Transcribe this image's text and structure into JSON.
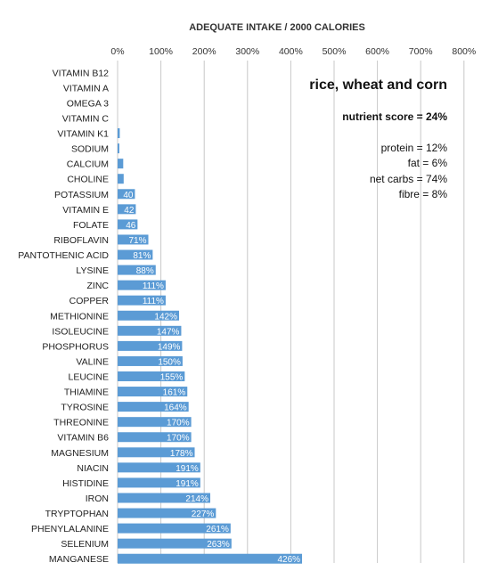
{
  "chart_data": {
    "type": "bar",
    "orientation": "horizontal",
    "title": "ADEQUATE INTAKE / 2000 CALORIES",
    "xlim": [
      0,
      800
    ],
    "xticks": [
      "0%",
      "100%",
      "200%",
      "300%",
      "400%",
      "500%",
      "600%",
      "700%",
      "800%"
    ],
    "grid": true,
    "bar_color": "#5b9bd5",
    "categories": [
      "VITAMIN B12",
      "VITAMIN A",
      "OMEGA 3",
      "VITAMIN C",
      "VITAMIN K1",
      "SODIUM",
      "CALCIUM",
      "CHOLINE",
      "POTASSIUM",
      "VITAMIN E",
      "FOLATE",
      "RIBOFLAVIN",
      "PANTOTHENIC ACID",
      "LYSINE",
      "ZINC",
      "COPPER",
      "METHIONINE",
      "ISOLEUCINE",
      "PHOSPHORUS",
      "VALINE",
      "LEUCINE",
      "THIAMINE",
      "TYROSINE",
      "THREONINE",
      "VITAMIN B6",
      "MAGNESIUM",
      "NIACIN",
      "HISTIDINE",
      "IRON",
      "TRYPTOPHAN",
      "PHENYLALANINE",
      "SELENIUM",
      "MANGANESE"
    ],
    "values": [
      0,
      0,
      0,
      0,
      5,
      4,
      13,
      14,
      40,
      42,
      46,
      71,
      81,
      88,
      111,
      111,
      142,
      147,
      149,
      150,
      155,
      161,
      164,
      170,
      170,
      178,
      191,
      191,
      214,
      227,
      261,
      263,
      426
    ],
    "data_labels": [
      "",
      "",
      "",
      "",
      "",
      "",
      "",
      "",
      "40",
      "42",
      "46",
      "71%",
      "81%",
      "88%",
      "111%",
      "111%",
      "142%",
      "147%",
      "149%",
      "150%",
      "155%",
      "161%",
      "164%",
      "170%",
      "170%",
      "178%",
      "191%",
      "191%",
      "214%",
      "227%",
      "261%",
      "263%",
      "426%"
    ]
  },
  "annotation": {
    "heading": "rice, wheat and corn",
    "score": "nutrient score = 24%",
    "lines": [
      "protein = 12%",
      "fat = 6%",
      "net carbs = 74%",
      "fibre = 8%"
    ]
  }
}
